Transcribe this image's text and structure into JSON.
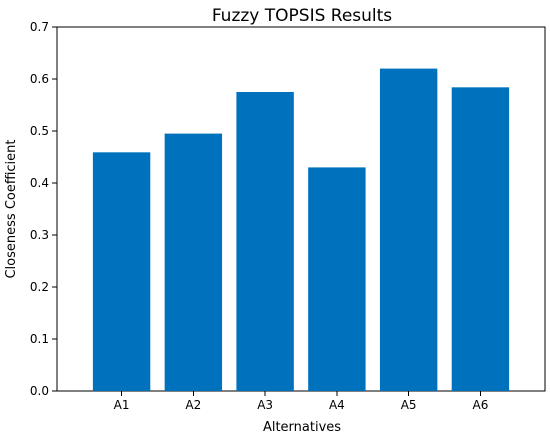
{
  "chart_data": {
    "type": "bar",
    "title": "Fuzzy TOPSIS Results",
    "xlabel": "Alternatives",
    "ylabel": "Closeness Coefficient",
    "categories": [
      "A1",
      "A2",
      "A3",
      "A4",
      "A5",
      "A6"
    ],
    "values": [
      0.459,
      0.495,
      0.575,
      0.43,
      0.62,
      0.584
    ],
    "ylim": [
      0,
      0.7
    ],
    "yticks": [
      "0.0",
      "0.1",
      "0.2",
      "0.3",
      "0.4",
      "0.5",
      "0.6",
      "0.7"
    ],
    "grid": false,
    "legend": "none",
    "bar_color": "#0072BD"
  }
}
